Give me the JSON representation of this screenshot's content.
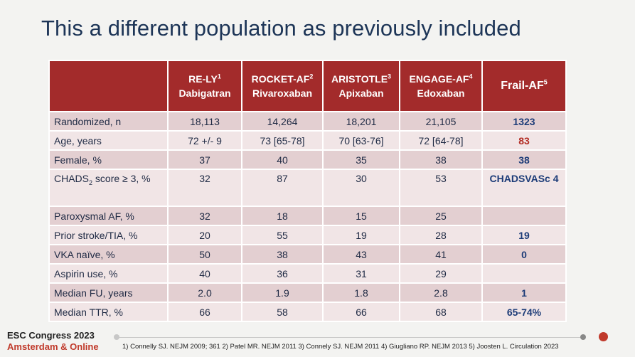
{
  "title": "This a different population as previously included",
  "columns": [
    {
      "trial": "RE-LY",
      "ref": "1",
      "drug": "Dabigatran"
    },
    {
      "trial": "ROCKET-AF",
      "ref": "2",
      "drug": "Rivaroxaban"
    },
    {
      "trial": "ARISTOTLE",
      "ref": "3",
      "drug": "Apixaban"
    },
    {
      "trial": "ENGAGE-AF",
      "ref": "4",
      "drug": "Edoxaban"
    },
    {
      "trial": "Frail-AF",
      "ref": "5"
    }
  ],
  "rows": [
    {
      "label": "Randomized, n",
      "values": [
        "18,113",
        "14,264",
        "18,201",
        "21,105"
      ],
      "frail": "1323"
    },
    {
      "label": "Age, years",
      "values": [
        "72 +/- 9",
        "73 [65-78]",
        "70 [63-76]",
        "72 [64-78]"
      ],
      "frail": "83"
    },
    {
      "label": "Female, %",
      "values": [
        "37",
        "40",
        "35",
        "38"
      ],
      "frail": "38"
    },
    {
      "label_pre": "CHADS",
      "label_sub": "2",
      "label_post": " score ≥ 3, %",
      "values": [
        "32",
        "87",
        "30",
        "53"
      ],
      "frail": "CHADSVASc 4"
    },
    {
      "label": "Paroxysmal AF, %",
      "values": [
        "32",
        "18",
        "15",
        "25"
      ],
      "frail": ""
    },
    {
      "label": "Prior stroke/TIA, %",
      "values": [
        "20",
        "55",
        "19",
        "28"
      ],
      "frail": "19"
    },
    {
      "label": "VKA naïve, %",
      "values": [
        "50",
        "38",
        "43",
        "41"
      ],
      "frail": "0"
    },
    {
      "label": "Aspirin use, %",
      "values": [
        "40",
        "36",
        "31",
        "29"
      ],
      "frail": ""
    },
    {
      "label": "Median FU, years",
      "values": [
        "2.0",
        "1.9",
        "1.8",
        "2.8"
      ],
      "frail": "1"
    },
    {
      "label": "Median TTR, %",
      "values": [
        "66",
        "58",
        "66",
        "68"
      ],
      "frail": "65-74%"
    }
  ],
  "footer": {
    "brand_line1": "ESC Congress 2023",
    "brand_line2": "Amsterdam & Online",
    "references": "1) Connelly SJ. NEJM 2009; 361  2) Patel MR. NEJM 2011 3) Connely SJ. NEJM 2011  4) Giugliano RP. NEJM 2013 5) Joosten L. Circulation 2023"
  },
  "colors": {
    "header_bg": "#a32b2b",
    "title": "#1d3557",
    "frail_text": "#1d3c78",
    "highlight_red": "#b22b22"
  }
}
